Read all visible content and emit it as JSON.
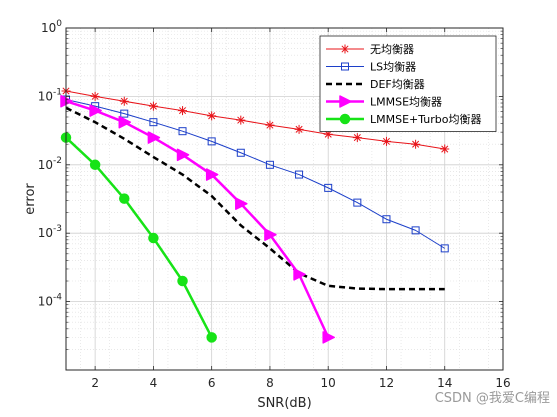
{
  "chart_data": {
    "type": "line",
    "xlabel": "SNR(dB)",
    "ylabel": "error",
    "xlim": [
      1,
      16
    ],
    "ylim_log10": [
      -5,
      0
    ],
    "yscale": "log",
    "grid": true,
    "minor_grid": true,
    "x_ticks": [
      "2",
      "4",
      "6",
      "8",
      "10",
      "12",
      "14",
      "16"
    ],
    "y_ticks": [
      {
        "base": "10",
        "exp": "0"
      },
      {
        "base": "10",
        "exp": "-1"
      },
      {
        "base": "10",
        "exp": "-2"
      },
      {
        "base": "10",
        "exp": "-3"
      },
      {
        "base": "10",
        "exp": "-4"
      }
    ],
    "legend_position": "top-right",
    "series": [
      {
        "name": "无均衡器",
        "color": "#e8141a",
        "marker": "asterisk",
        "dash": "solid",
        "width": 1,
        "x": [
          1,
          2,
          3,
          4,
          5,
          6,
          7,
          8,
          9,
          10,
          11,
          12,
          13,
          14
        ],
        "y": [
          0.12,
          0.1,
          0.085,
          0.072,
          0.062,
          0.052,
          0.045,
          0.038,
          0.033,
          0.028,
          0.025,
          0.022,
          0.02,
          0.017
        ]
      },
      {
        "name": "LS均衡器",
        "color": "#1c3fc9",
        "marker": "square",
        "dash": "solid",
        "width": 1,
        "x": [
          1,
          2,
          3,
          4,
          5,
          6,
          7,
          8,
          9,
          10,
          11,
          12,
          13,
          14
        ],
        "y": [
          0.09,
          0.072,
          0.056,
          0.042,
          0.031,
          0.022,
          0.015,
          0.01,
          0.0072,
          0.0046,
          0.0028,
          0.0016,
          0.0011,
          0.0006
        ]
      },
      {
        "name": "DEF均衡器",
        "color": "#000000",
        "marker": "none",
        "dash": "dashed",
        "width": 2.5,
        "x": [
          1,
          2,
          3,
          4,
          5,
          6,
          7,
          8,
          9,
          10,
          11,
          12,
          13,
          14
        ],
        "y": [
          0.068,
          0.042,
          0.024,
          0.013,
          0.0072,
          0.0035,
          0.0013,
          0.0006,
          0.00026,
          0.00017,
          0.000155,
          0.000152,
          0.000152,
          0.000152
        ]
      },
      {
        "name": "LMMSE均衡器",
        "color": "#ff00ff",
        "marker": "triangle-right",
        "dash": "solid",
        "width": 2.5,
        "x": [
          1,
          2,
          3,
          4,
          5,
          6,
          7,
          8,
          9,
          10
        ],
        "y": [
          0.085,
          0.062,
          0.042,
          0.025,
          0.014,
          0.0072,
          0.0027,
          0.00095,
          0.00025,
          3e-05
        ]
      },
      {
        "name": "LMMSE+Turbo均衡器",
        "color": "#17e317",
        "marker": "circle",
        "dash": "solid",
        "width": 2.5,
        "x": [
          1,
          2,
          3,
          4,
          5,
          6
        ],
        "y": [
          0.025,
          0.01,
          0.0032,
          0.00085,
          0.0002,
          3e-05
        ]
      }
    ]
  },
  "watermark": "CSDN @我爱C编程"
}
